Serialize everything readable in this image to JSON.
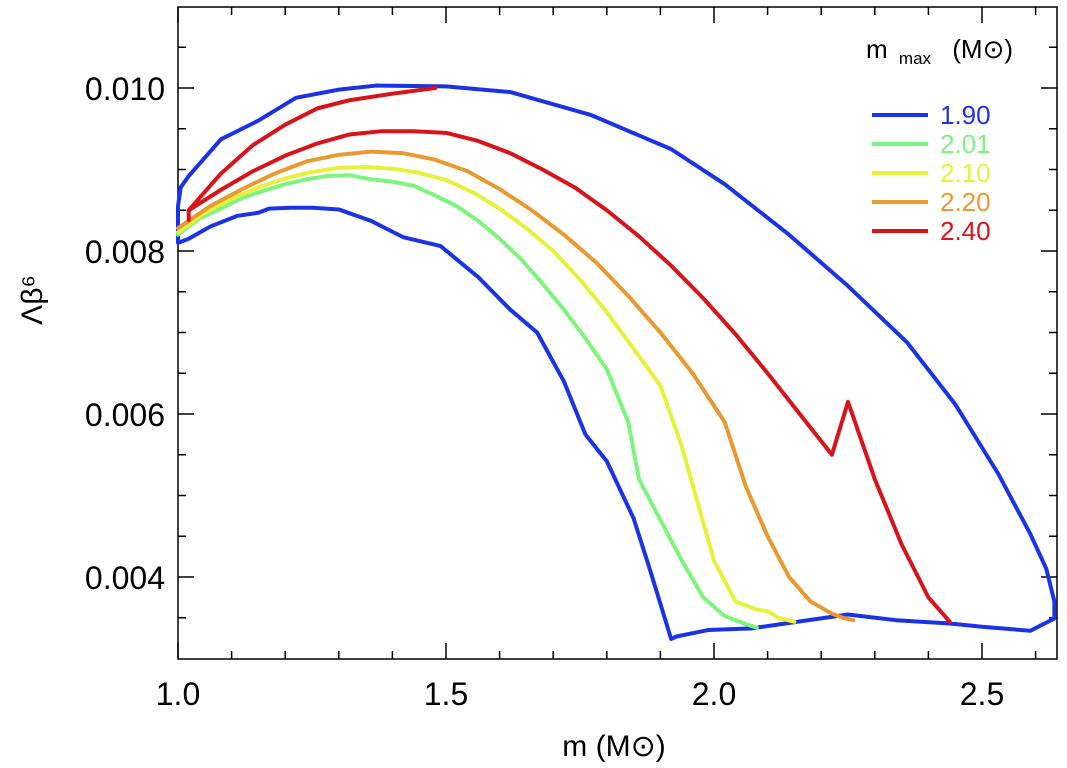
{
  "chart_data": {
    "type": "line",
    "xlabel": "m (M⊙)",
    "ylabel": "Λβ⁶",
    "xlim": [
      1.0,
      2.64
    ],
    "ylim": [
      0.003,
      0.011
    ],
    "x_major_ticks": [
      1.0,
      1.5,
      2.0,
      2.5
    ],
    "x_tick_labels": [
      "1.0",
      "1.5",
      "2.0",
      "2.5"
    ],
    "x_minor_step": 0.1,
    "y_major_ticks": [
      0.004,
      0.006,
      0.008,
      0.01
    ],
    "y_tick_labels": [
      "0.004",
      "0.006",
      "0.008",
      "0.010"
    ],
    "y_minor_step": 0.0005,
    "grid": false,
    "legend": {
      "title": "m max (M⊙)",
      "title_main": "m",
      "title_sub": "max",
      "title_unit": "(M⊙)",
      "placement": "top-right"
    },
    "series": [
      {
        "name": "1.90",
        "color": "#1a33e6",
        "envelope": true,
        "x": [
          1.0,
          1.005,
          1.02,
          1.08,
          1.15,
          1.22,
          1.3,
          1.37,
          1.5,
          1.62,
          1.77,
          1.92,
          2.02,
          2.14,
          2.25,
          2.36,
          2.45,
          2.53,
          2.59,
          2.62,
          2.635,
          2.635,
          2.59,
          2.5,
          2.44,
          2.34,
          2.25,
          2.07,
          1.99,
          1.93,
          1.92,
          1.88,
          1.85,
          1.8,
          1.76,
          1.72,
          1.67,
          1.62,
          1.56,
          1.49,
          1.42,
          1.36,
          1.3,
          1.25,
          1.21,
          1.17,
          1.15,
          1.11,
          1.06,
          1.02,
          1.0,
          1.0
        ],
        "y": [
          0.00855,
          0.00878,
          0.00892,
          0.00937,
          0.0096,
          0.00988,
          0.00998,
          0.01003,
          0.01002,
          0.00995,
          0.00967,
          0.00925,
          0.00882,
          0.0082,
          0.00757,
          0.00688,
          0.00612,
          0.00527,
          0.00453,
          0.0041,
          0.0037,
          0.00349,
          0.00334,
          0.00339,
          0.00343,
          0.00347,
          0.00354,
          0.00337,
          0.00335,
          0.00327,
          0.00324,
          0.0041,
          0.00472,
          0.00542,
          0.00575,
          0.0064,
          0.007,
          0.00728,
          0.00768,
          0.00806,
          0.00817,
          0.00837,
          0.00851,
          0.00853,
          0.00853,
          0.00852,
          0.00847,
          0.00843,
          0.0083,
          0.00815,
          0.0081,
          0.00855
        ]
      },
      {
        "name": "2.01",
        "color": "#7df57d",
        "envelope": false,
        "x": [
          1.0,
          1.04,
          1.08,
          1.12,
          1.16,
          1.2,
          1.24,
          1.28,
          1.32,
          1.36,
          1.4,
          1.44,
          1.48,
          1.52,
          1.56,
          1.6,
          1.64,
          1.68,
          1.72,
          1.76,
          1.8,
          1.84,
          1.86,
          1.9,
          1.94,
          1.98,
          2.02,
          2.06,
          2.08
        ],
        "y": [
          0.0082,
          0.0084,
          0.00852,
          0.00865,
          0.00874,
          0.00882,
          0.00888,
          0.00892,
          0.00893,
          0.00888,
          0.00885,
          0.0088,
          0.00868,
          0.00855,
          0.00837,
          0.00815,
          0.0079,
          0.0076,
          0.00728,
          0.00693,
          0.00655,
          0.0059,
          0.0052,
          0.0047,
          0.0042,
          0.00375,
          0.00352,
          0.00342,
          0.00338
        ]
      },
      {
        "name": "2.10",
        "color": "#e8f03a",
        "envelope": false,
        "x": [
          1.0,
          1.05,
          1.1,
          1.15,
          1.2,
          1.25,
          1.3,
          1.35,
          1.4,
          1.45,
          1.5,
          1.55,
          1.6,
          1.65,
          1.7,
          1.75,
          1.8,
          1.85,
          1.9,
          1.94,
          1.97,
          2.0,
          2.04,
          2.08,
          2.1,
          2.12,
          2.15
        ],
        "y": [
          0.00823,
          0.00847,
          0.00864,
          0.00878,
          0.00889,
          0.00897,
          0.00902,
          0.00903,
          0.00901,
          0.00896,
          0.00887,
          0.00872,
          0.00852,
          0.00828,
          0.008,
          0.00765,
          0.00725,
          0.0068,
          0.00635,
          0.0056,
          0.0049,
          0.0042,
          0.0037,
          0.0036,
          0.00358,
          0.0035,
          0.00345
        ]
      },
      {
        "name": "2.20",
        "color": "#e89a30",
        "envelope": false,
        "x": [
          1.0,
          1.06,
          1.12,
          1.18,
          1.24,
          1.3,
          1.36,
          1.42,
          1.48,
          1.54,
          1.6,
          1.66,
          1.72,
          1.78,
          1.84,
          1.9,
          1.96,
          2.02,
          2.06,
          2.1,
          2.14,
          2.18,
          2.22,
          2.24,
          2.26
        ],
        "y": [
          0.00828,
          0.00855,
          0.00876,
          0.00895,
          0.0091,
          0.00918,
          0.00922,
          0.0092,
          0.00912,
          0.00898,
          0.00876,
          0.0085,
          0.0082,
          0.00786,
          0.00745,
          0.007,
          0.0065,
          0.0059,
          0.0051,
          0.0045,
          0.004,
          0.0037,
          0.00355,
          0.0035,
          0.00347
        ]
      },
      {
        "name": "2.40",
        "color": "#d8141a",
        "envelope": false,
        "x": [
          1.02,
          1.02,
          1.08,
          1.14,
          1.2,
          1.26,
          1.32,
          1.38,
          1.44,
          1.5,
          1.56,
          1.62,
          1.68,
          1.74,
          1.8,
          1.86,
          1.92,
          1.98,
          2.04,
          2.1,
          2.16,
          2.22,
          2.25,
          2.3,
          2.35,
          2.4,
          2.44,
          1.02,
          1.08,
          1.14,
          1.2,
          1.26,
          1.32,
          1.4,
          1.48
        ],
        "y": [
          0.00838,
          0.0085,
          0.00875,
          0.00898,
          0.00917,
          0.00932,
          0.00943,
          0.00947,
          0.00947,
          0.00945,
          0.00935,
          0.0092,
          0.009,
          0.00878,
          0.0085,
          0.00818,
          0.00782,
          0.00742,
          0.00698,
          0.0065,
          0.006,
          0.0055,
          0.00615,
          0.0052,
          0.0044,
          0.00375,
          0.00345,
          0.0085,
          0.00895,
          0.0093,
          0.00955,
          0.00975,
          0.00985,
          0.00993,
          0.01
        ]
      }
    ]
  }
}
